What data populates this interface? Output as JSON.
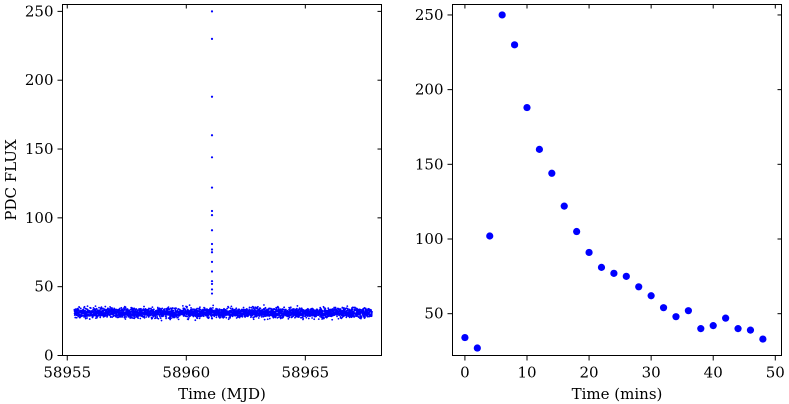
{
  "colors": {
    "marker": "#0000ff",
    "axes": "#000000",
    "background": "#ffffff"
  },
  "chart_data": [
    {
      "type": "scatter",
      "title": "",
      "xlabel": "Time (MJD)",
      "ylabel": "PDC FLUX",
      "xlim": [
        58954.8,
        58968.2
      ],
      "ylim": [
        0,
        255
      ],
      "xticks": [
        58955,
        58960,
        58965
      ],
      "xtick_labels": [
        "58955",
        "58960",
        "58965"
      ],
      "yticks": [
        0,
        50,
        100,
        150,
        200,
        250
      ],
      "ytick_labels": [
        "0",
        "50",
        "100",
        "150",
        "200",
        "250"
      ],
      "grid": false,
      "baseline": {
        "x_start": 58955.3,
        "x_end": 58967.8,
        "mean_flux": 31,
        "flux_range": [
          12,
          48
        ]
      },
      "flare_points": [
        {
          "x": 58961.08,
          "y": 27
        },
        {
          "x": 58961.08,
          "y": 33
        },
        {
          "x": 58961.08,
          "y": 102
        },
        {
          "x": 58961.08,
          "y": 250
        },
        {
          "x": 58961.08,
          "y": 230
        },
        {
          "x": 58961.08,
          "y": 188
        },
        {
          "x": 58961.08,
          "y": 160
        },
        {
          "x": 58961.08,
          "y": 144
        },
        {
          "x": 58961.08,
          "y": 122
        },
        {
          "x": 58961.08,
          "y": 105
        },
        {
          "x": 58961.08,
          "y": 91
        },
        {
          "x": 58961.08,
          "y": 81
        },
        {
          "x": 58961.08,
          "y": 77
        },
        {
          "x": 58961.08,
          "y": 75
        },
        {
          "x": 58961.08,
          "y": 68
        },
        {
          "x": 58961.08,
          "y": 61
        },
        {
          "x": 58961.08,
          "y": 54
        },
        {
          "x": 58961.08,
          "y": 48
        },
        {
          "x": 58961.08,
          "y": 52
        },
        {
          "x": 58961.08,
          "y": 45
        }
      ]
    },
    {
      "type": "scatter",
      "title": "",
      "xlabel": "Time (mins)",
      "ylabel": "",
      "xlim": [
        -2,
        51
      ],
      "ylim": [
        22,
        257
      ],
      "xticks": [
        0,
        10,
        20,
        30,
        40,
        50
      ],
      "xtick_labels": [
        "0",
        "10",
        "20",
        "30",
        "40",
        "50"
      ],
      "yticks": [
        50,
        100,
        150,
        200,
        250
      ],
      "ytick_labels": [
        "50",
        "100",
        "150",
        "200",
        "250"
      ],
      "grid": false,
      "x": [
        0,
        2,
        4,
        6,
        8,
        10,
        12,
        14,
        16,
        18,
        20,
        22,
        24,
        26,
        28,
        30,
        32,
        34,
        36,
        38,
        40,
        42,
        44,
        46,
        48
      ],
      "y": [
        34,
        27,
        102,
        250,
        230,
        188,
        160,
        144,
        122,
        105,
        91,
        81,
        77,
        75,
        68,
        62,
        54,
        48,
        52,
        40,
        42,
        47,
        40,
        39,
        33
      ]
    }
  ]
}
